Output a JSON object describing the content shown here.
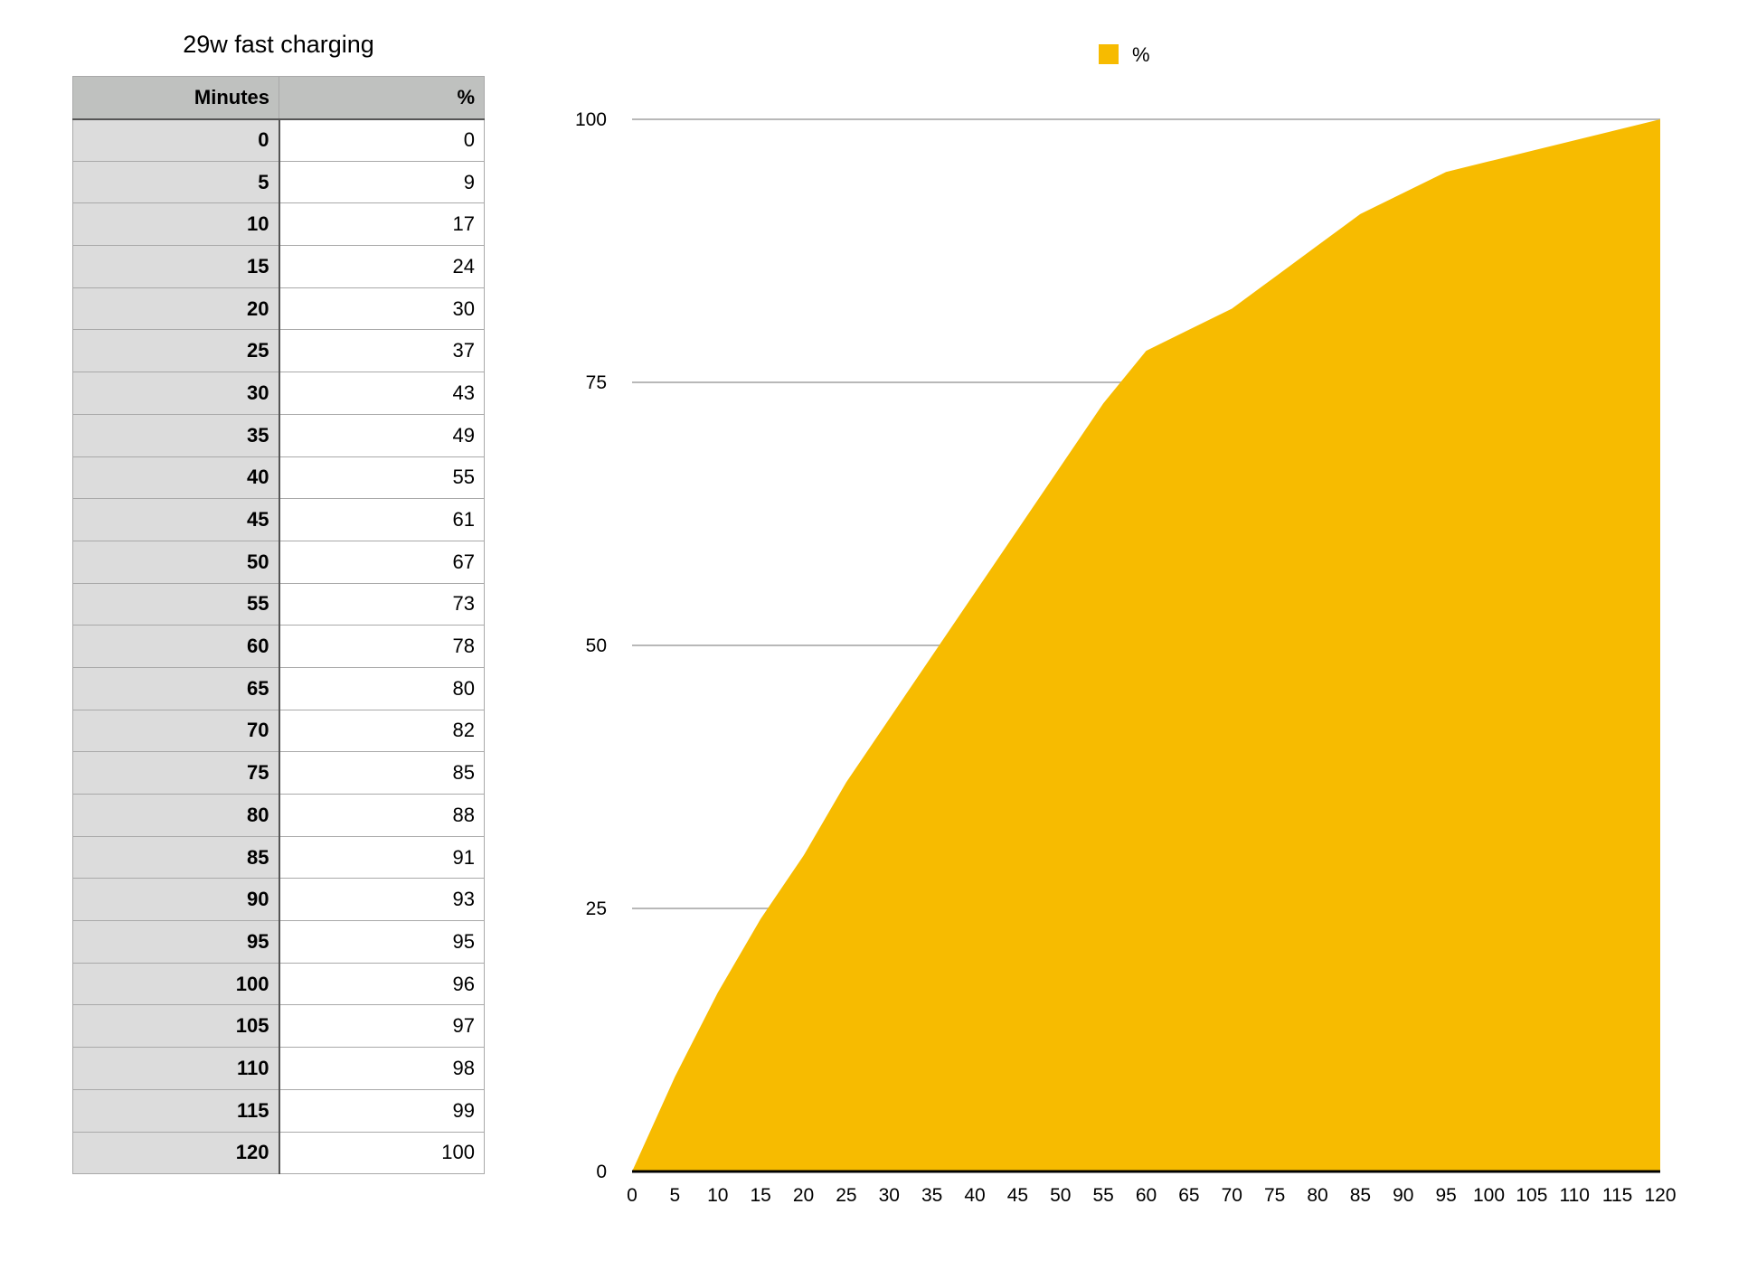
{
  "table": {
    "title": "29w fast charging",
    "headers": [
      "Minutes",
      "%"
    ],
    "rows": [
      [
        "0",
        "0"
      ],
      [
        "5",
        "9"
      ],
      [
        "10",
        "17"
      ],
      [
        "15",
        "24"
      ],
      [
        "20",
        "30"
      ],
      [
        "25",
        "37"
      ],
      [
        "30",
        "43"
      ],
      [
        "35",
        "49"
      ],
      [
        "40",
        "55"
      ],
      [
        "45",
        "61"
      ],
      [
        "50",
        "67"
      ],
      [
        "55",
        "73"
      ],
      [
        "60",
        "78"
      ],
      [
        "65",
        "80"
      ],
      [
        "70",
        "82"
      ],
      [
        "75",
        "85"
      ],
      [
        "80",
        "88"
      ],
      [
        "85",
        "91"
      ],
      [
        "90",
        "93"
      ],
      [
        "95",
        "95"
      ],
      [
        "100",
        "96"
      ],
      [
        "105",
        "97"
      ],
      [
        "110",
        "98"
      ],
      [
        "115",
        "99"
      ],
      [
        "120",
        "100"
      ]
    ]
  },
  "chart_data": {
    "type": "area",
    "title": "",
    "xlabel": "",
    "ylabel": "",
    "x": [
      0,
      5,
      10,
      15,
      20,
      25,
      30,
      35,
      40,
      45,
      50,
      55,
      60,
      65,
      70,
      75,
      80,
      85,
      90,
      95,
      100,
      105,
      110,
      115,
      120
    ],
    "series": [
      {
        "name": "%",
        "color": "#f7bb00",
        "values": [
          0,
          9,
          17,
          24,
          30,
          37,
          43,
          49,
          55,
          61,
          67,
          73,
          78,
          80,
          82,
          85,
          88,
          91,
          93,
          95,
          96,
          97,
          98,
          99,
          100
        ]
      }
    ],
    "xlim": [
      0,
      120
    ],
    "ylim": [
      0,
      100
    ],
    "x_ticks": [
      "0",
      "5",
      "10",
      "15",
      "20",
      "25",
      "30",
      "35",
      "40",
      "45",
      "50",
      "55",
      "60",
      "65",
      "70",
      "75",
      "80",
      "85",
      "90",
      "95",
      "100",
      "105",
      "110",
      "115",
      "120"
    ],
    "y_ticks": [
      "0",
      "25",
      "50",
      "75",
      "100"
    ],
    "grid": "horizontal",
    "legend": "top-center",
    "colors": {
      "gridline": "#b8b8b8",
      "axis": "#000000",
      "header_bg": "#bfc1bf",
      "key_col_bg": "#dcdcdc"
    }
  }
}
